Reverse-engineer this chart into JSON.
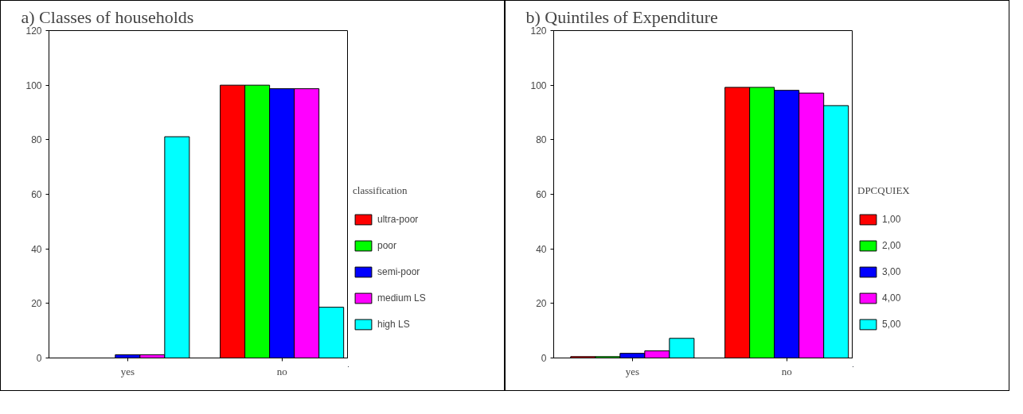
{
  "chart_data": [
    {
      "type": "bar",
      "title": "a) Classes of households",
      "categories": [
        "yes",
        "no"
      ],
      "ylim": [
        0,
        120
      ],
      "yticks": [
        0,
        20,
        40,
        60,
        80,
        100,
        120
      ],
      "legend": "right",
      "legend_title": "classification",
      "series": [
        {
          "name": "ultra-poor",
          "color": "#ff0000",
          "values": [
            0,
            100
          ]
        },
        {
          "name": "poor",
          "color": "#00ff00",
          "values": [
            0,
            100
          ]
        },
        {
          "name": "semi-poor",
          "color": "#0000ff",
          "values": [
            1.2,
            98.7
          ]
        },
        {
          "name": "medium LS",
          "color": "#ff00ff",
          "values": [
            1.2,
            98.7
          ]
        },
        {
          "name": "high LS",
          "color": "#00ffff",
          "values": [
            81.1,
            18.6
          ]
        }
      ]
    },
    {
      "type": "bar",
      "title": "b) Quintiles of Expenditure",
      "categories": [
        "yes",
        "no"
      ],
      "ylim": [
        0,
        120
      ],
      "yticks": [
        0,
        20,
        40,
        60,
        80,
        100,
        120
      ],
      "legend": "right",
      "legend_title": "DPCQUIEX",
      "series": [
        {
          "name": "1,00",
          "color": "#ff0000",
          "values": [
            0.5,
            99.2
          ]
        },
        {
          "name": "2,00",
          "color": "#00ff00",
          "values": [
            0.5,
            99.2
          ]
        },
        {
          "name": "3,00",
          "color": "#0000ff",
          "values": [
            1.7,
            98.1
          ]
        },
        {
          "name": "4,00",
          "color": "#ff00ff",
          "values": [
            2.6,
            97.1
          ]
        },
        {
          "name": "5,00",
          "color": "#00ffff",
          "values": [
            7.2,
            92.5
          ]
        }
      ]
    }
  ]
}
